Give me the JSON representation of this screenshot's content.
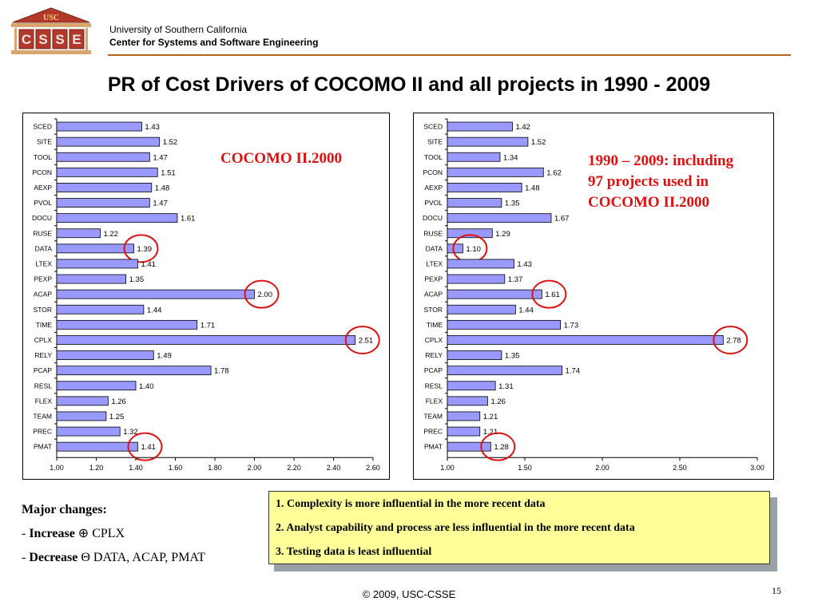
{
  "header": {
    "logo_text": "USC",
    "logo_letters": [
      "C",
      "S",
      "S",
      "E"
    ],
    "university": "University of Southern California",
    "center": "Center for Systems and Software Engineering"
  },
  "slide": {
    "title": "PR of Cost Drivers of COCOMO II and all projects in 1990 - 2009",
    "left_note": "COCOMO II.2000",
    "right_note_lines": [
      "1990 – 2009: including",
      "97 projects used in",
      "COCOMO II.2000"
    ]
  },
  "major_changes": {
    "heading": "Major changes:",
    "increase_label": "Increase",
    "increase_symbol": "⊕",
    "increase_items": "CPLX",
    "decrease_label": "Decrease",
    "decrease_symbol": "Θ",
    "decrease_items": "DATA, ACAP, PMAT"
  },
  "findings": [
    "1. Complexity is more influential in the more recent data",
    "2. Analyst capability and process are less influential in the more recent data",
    "3. Testing data is least influential"
  ],
  "footer": {
    "copyright": "© 2009, USC-CSSE",
    "page_number": "15"
  },
  "colors": {
    "bar_fill": "#9999ff",
    "note_red": "#e01010",
    "circle_red": "#dd1111",
    "box_fill": "#ffff99",
    "rule": "#b5651d"
  },
  "chart_data": [
    {
      "type": "bar",
      "orientation": "horizontal",
      "title": "",
      "categories": [
        "SCED",
        "SITE",
        "TOOL",
        "PCON",
        "AEXP",
        "PVOL",
        "DOCU",
        "RUSE",
        "DATA",
        "LTEX",
        "PEXP",
        "ACAP",
        "STOR",
        "TIME",
        "CPLX",
        "RELY",
        "PCAP",
        "RESL",
        "FLEX",
        "TEAM",
        "PREC",
        "PMAT"
      ],
      "values": [
        1.43,
        1.52,
        1.47,
        1.51,
        1.48,
        1.47,
        1.61,
        1.22,
        1.39,
        1.41,
        1.35,
        2.0,
        1.44,
        1.71,
        2.51,
        1.49,
        1.78,
        1.4,
        1.26,
        1.25,
        1.32,
        1.41
      ],
      "value_labels": [
        "1.43",
        "1.52",
        "1.47",
        "1.51",
        "1.48",
        "1.47",
        "1.61",
        "1.22",
        "1.39",
        "1.41",
        "1.35",
        "2.00",
        "1.44",
        "1.71",
        "2.51",
        "1.49",
        "1.78",
        "1.40",
        "1.26",
        "1.25",
        "1.32",
        "1.41"
      ],
      "xlim": [
        1.0,
        2.6
      ],
      "xticks": [
        "1.00",
        "1.20",
        "1.40",
        "1.60",
        "1.80",
        "2.00",
        "2.20",
        "2.40",
        "2.60"
      ],
      "xtick_values": [
        1.0,
        1.2,
        1.4,
        1.6,
        1.8,
        2.0,
        2.2,
        2.4,
        2.6
      ],
      "circled": [
        "DATA",
        "ACAP",
        "CPLX",
        "PMAT"
      ],
      "grid": false
    },
    {
      "type": "bar",
      "orientation": "horizontal",
      "title": "",
      "categories": [
        "SCED",
        "SITE",
        "TOOL",
        "PCON",
        "AEXP",
        "PVOL",
        "DOCU",
        "RUSE",
        "DATA",
        "LTEX",
        "PEXP",
        "ACAP",
        "STOR",
        "TIME",
        "CPLX",
        "RELY",
        "PCAP",
        "RESL",
        "FLEX",
        "TEAM",
        "PREC",
        "PMAT"
      ],
      "values": [
        1.42,
        1.52,
        1.34,
        1.62,
        1.48,
        1.35,
        1.67,
        1.29,
        1.1,
        1.43,
        1.37,
        1.61,
        1.44,
        1.73,
        2.78,
        1.35,
        1.74,
        1.31,
        1.26,
        1.21,
        1.21,
        1.28
      ],
      "value_labels": [
        "1.42",
        "1.52",
        "1.34",
        "1.62",
        "1.48",
        "1.35",
        "1.67",
        "1.29",
        "1.10",
        "1.43",
        "1.37",
        "1.61",
        "1.44",
        "1.73",
        "2.78",
        "1.35",
        "1.74",
        "1.31",
        "1.26",
        "1.21",
        "1.21",
        "1.28"
      ],
      "xlim": [
        1.0,
        3.0
      ],
      "xticks": [
        "1.00",
        "1.50",
        "2.00",
        "2.50",
        "3.00"
      ],
      "xtick_values": [
        1.0,
        1.5,
        2.0,
        2.5,
        3.0
      ],
      "circled": [
        "DATA",
        "ACAP",
        "CPLX",
        "PMAT"
      ],
      "grid": false
    }
  ]
}
